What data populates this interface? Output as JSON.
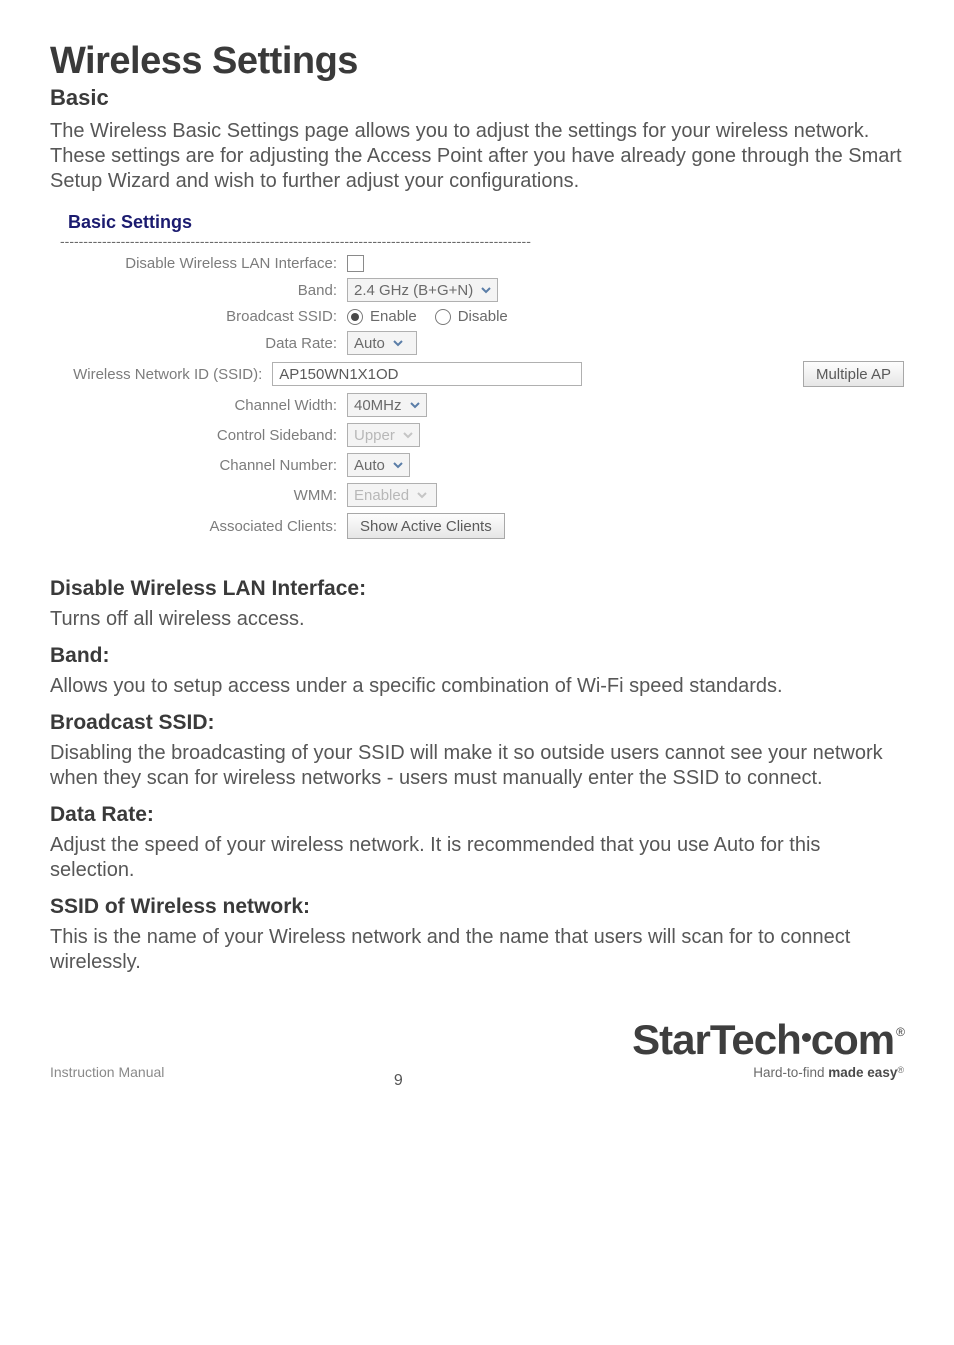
{
  "title": "Wireless Settings",
  "subtitle": "Basic",
  "intro": "The Wireless Basic Settings page allows you to adjust the settings for your wireless network. These settings are for adjusting the Access Point after you have already gone through the Smart Setup Wizard and wish to further adjust your configurations.",
  "panel": {
    "heading": "Basic Settings",
    "rows": {
      "disable_lan": {
        "label": "Disable Wireless LAN Interface:"
      },
      "band": {
        "label": "Band:",
        "value": "2.4 GHz (B+G+N)"
      },
      "broadcast": {
        "label": "Broadcast SSID:",
        "opt_enable": "Enable",
        "opt_disable": "Disable"
      },
      "datarate": {
        "label": "Data Rate:",
        "value": "Auto"
      },
      "ssid": {
        "label": "Wireless Network ID (SSID):",
        "value": "AP150WN1X1OD",
        "button": "Multiple AP"
      },
      "chwidth": {
        "label": "Channel Width:",
        "value": "40MHz"
      },
      "sideband": {
        "label": "Control Sideband:",
        "value": "Upper"
      },
      "chnum": {
        "label": "Channel Number:",
        "value": "Auto"
      },
      "wmm": {
        "label": "WMM:",
        "value": "Enabled"
      },
      "assoc": {
        "label": "Associated Clients:",
        "button": "Show Active Clients"
      }
    }
  },
  "descriptions": [
    {
      "h": "Disable Wireless LAN Interface:",
      "t": "Turns off all wireless access."
    },
    {
      "h": "Band:",
      "t": "Allows you to setup access under a specific combination of Wi-Fi speed standards."
    },
    {
      "h": "Broadcast SSID:",
      "t": "Disabling the broadcasting of your SSID will make it so outside users cannot see your network when they scan for wireless networks - users must manually enter the SSID to connect."
    },
    {
      "h": "Data Rate:",
      "t": "Adjust the speed of your wireless network. It is recommended that you use Auto for this selection."
    },
    {
      "h": "SSID of Wireless network:",
      "t": "This is the name of your Wireless network and the name that users will scan for to connect wirelessly."
    }
  ],
  "footer": {
    "left": "Instruction Manual",
    "page": "9",
    "logo_main": "StarTech",
    "logo_suffix": "com",
    "tagline_a": "Hard-to-find ",
    "tagline_b": "made easy"
  },
  "style": {
    "arrow_color": "#5b7ea8",
    "arrow_disabled": "#c5c5c5"
  }
}
